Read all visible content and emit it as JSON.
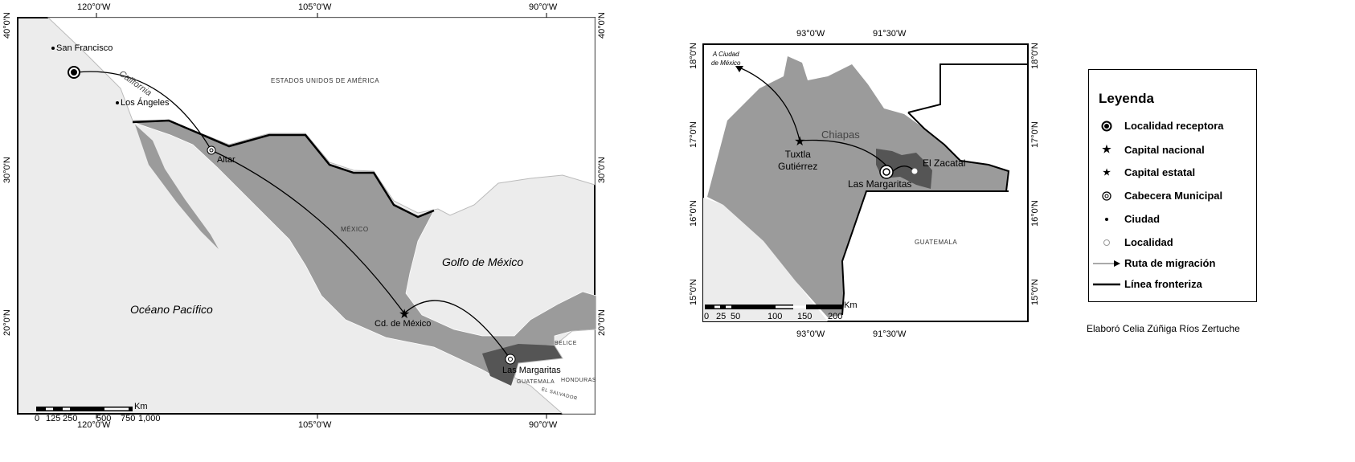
{
  "map_left": {
    "lon_ticks": [
      "120°0'W",
      "105°0'W",
      "90°0'W"
    ],
    "lat_ticks": [
      "40°0'N",
      "30°0'N",
      "20°0'N"
    ],
    "places": {
      "san_francisco": "San Francisco",
      "los_angeles": "Los Ángeles",
      "california": "California",
      "altar": "Altar",
      "usa": "ESTADOS UNIDOS DE AMÉRICA",
      "mexico": "MÉXICO",
      "golfo": "Golfo de México",
      "pacifico": "Océano Pacífico",
      "cdmx": "Cd. de México",
      "las_margaritas": "Las Margaritas",
      "belice": "BELICE",
      "guatemala": "GUATEMALA",
      "honduras": "HONDURAS",
      "el_salvador": "EL SALVADOR"
    },
    "scale": {
      "unit": "Km",
      "labels": [
        "0",
        "125",
        "250",
        "500",
        "750",
        "1,000"
      ]
    }
  },
  "map_right": {
    "lon_ticks": [
      "93°0'W",
      "91°30'W"
    ],
    "lat_ticks": [
      "18°0'N",
      "17°0'N",
      "16°0'N",
      "15°0'N"
    ],
    "places": {
      "a_cdmx_1": "A Ciudad",
      "a_cdmx_2": "de México",
      "chiapas": "Chiapas",
      "tuxtla_1": "Tuxtla",
      "tuxtla_2": "Gutiérrez",
      "el_zacatal": "El Zacatal",
      "las_margaritas": "Las Margaritas",
      "guatemala": "GUATEMALA"
    },
    "scale": {
      "unit": "Km",
      "labels": [
        "0",
        "25",
        "50",
        "100",
        "150",
        "200"
      ]
    }
  },
  "legend": {
    "title": "Leyenda",
    "items": [
      {
        "icon": "localidad-receptora-icon",
        "label": "Localidad receptora"
      },
      {
        "icon": "capital-nacional-icon",
        "label": "Capital nacional"
      },
      {
        "icon": "capital-estatal-icon",
        "label": "Capital estatal"
      },
      {
        "icon": "cabecera-municipal-icon",
        "label": "Cabecera Municipal"
      },
      {
        "icon": "ciudad-icon",
        "label": "Ciudad"
      },
      {
        "icon": "localidad-icon",
        "label": "Localidad"
      },
      {
        "icon": "arrow-icon",
        "label": "Ruta de migración"
      },
      {
        "icon": "border-line-icon",
        "label": "Línea fronteriza"
      }
    ]
  },
  "credit": "Elaboró Celia Zúñiga Ríos Zertuche",
  "colors": {
    "water": "#ececec",
    "land_other": "#ffffff",
    "mexico": "#9b9b9b",
    "highlight": "#555555"
  }
}
